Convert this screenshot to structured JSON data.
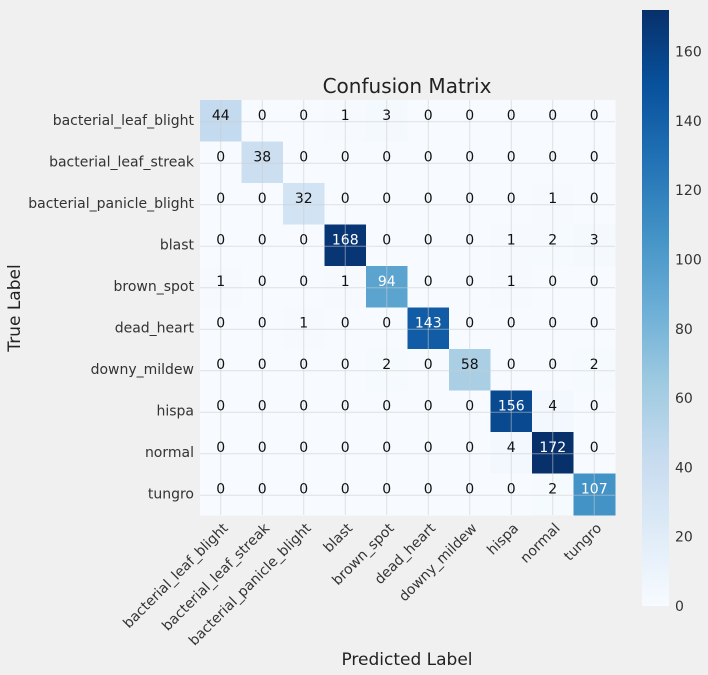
{
  "chart_data": {
    "type": "heatmap",
    "title": "Confusion Matrix",
    "xlabel": "Predicted Label",
    "ylabel": "True Label",
    "labels": [
      "bacterial_leaf_blight",
      "bacterial_leaf_streak",
      "bacterial_panicle_blight",
      "blast",
      "brown_spot",
      "dead_heart",
      "downy_mildew",
      "hispa",
      "normal",
      "tungro"
    ],
    "matrix": [
      [
        44,
        0,
        0,
        1,
        3,
        0,
        0,
        0,
        0,
        0
      ],
      [
        0,
        38,
        0,
        0,
        0,
        0,
        0,
        0,
        0,
        0
      ],
      [
        0,
        0,
        32,
        0,
        0,
        0,
        0,
        0,
        1,
        0
      ],
      [
        0,
        0,
        0,
        168,
        0,
        0,
        0,
        1,
        2,
        3
      ],
      [
        1,
        0,
        0,
        1,
        94,
        0,
        0,
        1,
        0,
        0
      ],
      [
        0,
        0,
        1,
        0,
        0,
        143,
        0,
        0,
        0,
        0
      ],
      [
        0,
        0,
        0,
        0,
        2,
        0,
        58,
        0,
        0,
        2
      ],
      [
        0,
        0,
        0,
        0,
        0,
        0,
        0,
        156,
        4,
        0
      ],
      [
        0,
        0,
        0,
        0,
        0,
        0,
        0,
        4,
        172,
        0
      ],
      [
        0,
        0,
        0,
        0,
        0,
        0,
        0,
        0,
        2,
        107
      ]
    ],
    "colorbar": {
      "min": 0,
      "max": 172,
      "ticks": [
        0,
        20,
        40,
        60,
        80,
        100,
        120,
        140,
        160
      ],
      "colormap": "Blues"
    },
    "grid": true
  }
}
